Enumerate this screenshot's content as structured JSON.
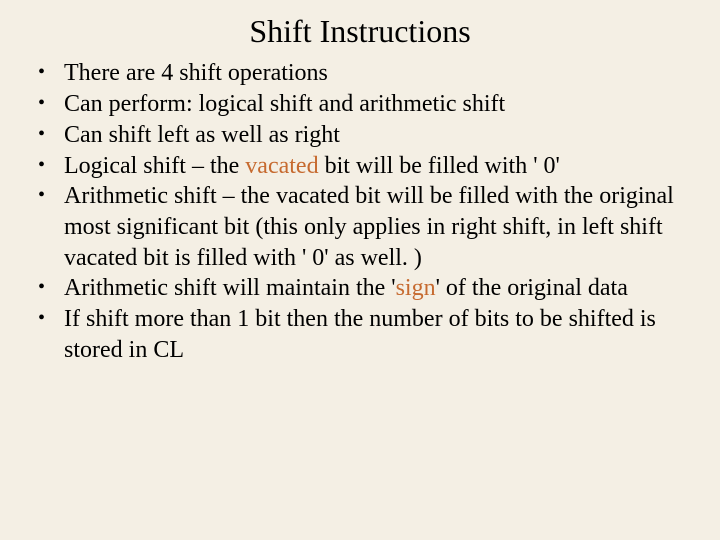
{
  "background_color": "#f4efe4",
  "highlight_color": "#c66a2f",
  "text_color": "#000000",
  "title_fontsize": 32,
  "body_fontsize": 24,
  "font_family": "Times New Roman",
  "title": "Shift Instructions",
  "bullets": {
    "b0": "There are 4 shift operations",
    "b1": "Can perform: logical shift and arithmetic shift",
    "b2": "Can shift left as well as right",
    "b3_pre": "Logical shift – the ",
    "b3_hl": "vacated",
    "b3_post": " bit will be filled with ' 0'",
    "b4": "Arithmetic shift – the vacated bit will be filled with the original most significant bit (this only applies in right shift, in left shift vacated bit is filled with ' 0' as well. )",
    "b5_pre": "Arithmetic shift will maintain the '",
    "b5_hl": "sign",
    "b5_post": "' of the original data",
    "b6": "If shift more than 1 bit then the number of bits to be shifted is stored in CL"
  }
}
